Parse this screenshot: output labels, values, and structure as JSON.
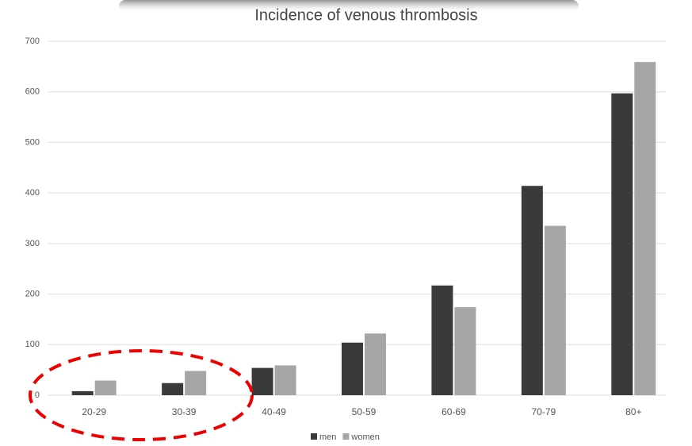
{
  "chart_data": {
    "type": "bar",
    "title": "Incidence of venous thrombosis",
    "categories": [
      "20-29",
      "30-39",
      "40-49",
      "50-59",
      "60-69",
      "70-79",
      "80+"
    ],
    "series": [
      {
        "name": "men",
        "color": "#3a3a3a",
        "values": [
          8,
          24,
          54,
          104,
          217,
          414,
          597
        ]
      },
      {
        "name": "women",
        "color": "#a6a6a6",
        "values": [
          29,
          48,
          59,
          122,
          174,
          335,
          659
        ]
      }
    ],
    "ylim": [
      0,
      700
    ],
    "yticks": [
      0,
      100,
      200,
      300,
      400,
      500,
      600,
      700
    ],
    "grid": true,
    "legend": "bottom"
  }
}
